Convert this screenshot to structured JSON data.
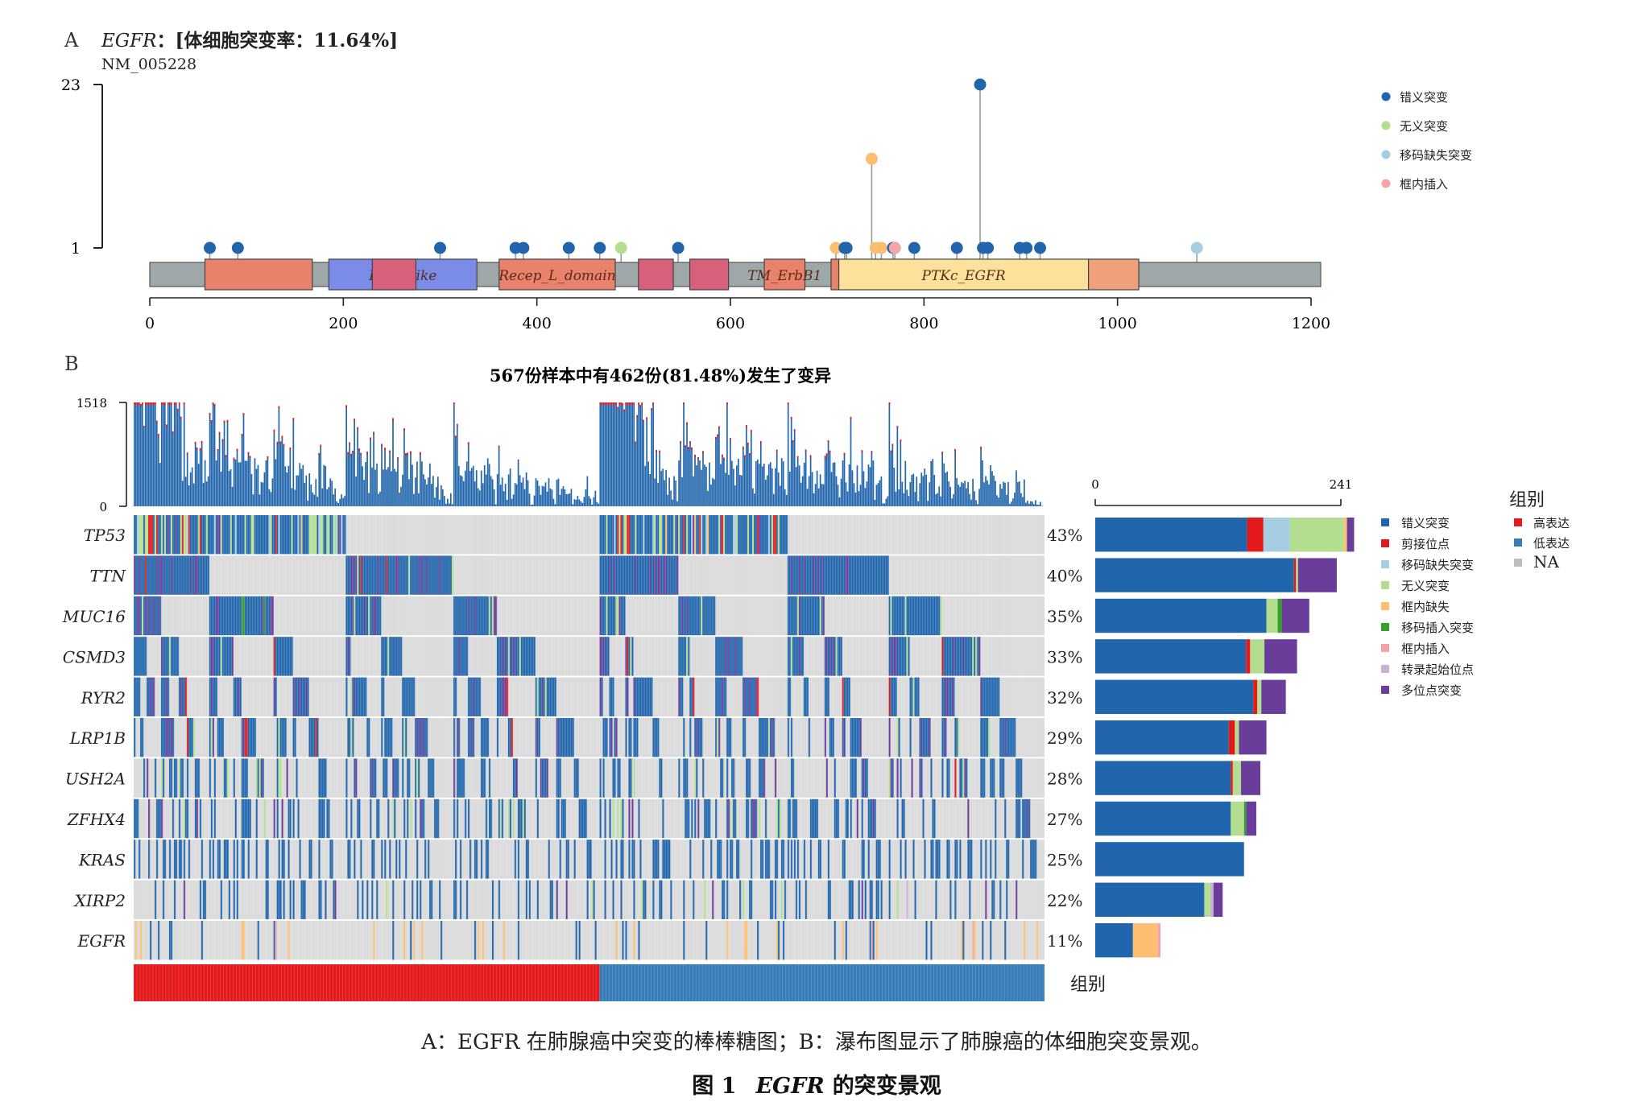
{
  "panel_a_letter": "A",
  "panel_b_letter": "B",
  "caption_text": "A：EGFR 在肺腺癌中突变的棒棒糖图；B：瀑布图显示了肺腺癌的体细胞突变景观。",
  "figure_title": {
    "prefix": "图 1",
    "gene": "EGFR",
    "suffix": "的突变景观"
  },
  "colors": {
    "missense": "#2166ac",
    "nonsense": "#b3de8f",
    "frameshift_del": "#a6cee3",
    "inframe_ins": "#f4a3a8",
    "splice": "#e31a1c",
    "inframe_del": "#fdbf6f",
    "frameshift_ins": "#33a02c",
    "tss": "#cab2d6",
    "multi_hit": "#6a3d9a",
    "background_cell": "#d9d9d9",
    "high_expr": "#e41a1c",
    "low_expr": "#377eb8",
    "na": "#bdbdbd"
  },
  "chart_data": [
    {
      "type": "lollipop",
      "gene": "EGFR",
      "title_extra": "：[体细胞突变率：11.64%]",
      "transcript": "NM_005228",
      "ylim": [
        0,
        23
      ],
      "y_ticks": [
        "1",
        "23"
      ],
      "xlim": [
        0,
        1210
      ],
      "x_ticks": [
        0,
        200,
        400,
        600,
        800,
        1000,
        1200
      ],
      "protein_length": 1210,
      "domains": [
        {
          "name": "",
          "start": 57,
          "end": 168,
          "color": "#e8826a"
        },
        {
          "name": "Furin-like",
          "start": 185,
          "end": 338,
          "color": "#7b8be8"
        },
        {
          "name": "",
          "start": 230,
          "end": 275,
          "color": "#d9607a"
        },
        {
          "name": "Recep_L_domain",
          "start": 361,
          "end": 481,
          "color": "#e8826a"
        },
        {
          "name": "",
          "start": 505,
          "end": 541,
          "color": "#d9607a"
        },
        {
          "name": "",
          "start": 558,
          "end": 598,
          "color": "#d9607a"
        },
        {
          "name": "TM_ErbB1",
          "start": 635,
          "end": 677,
          "color": "#e8826a"
        },
        {
          "name": "",
          "start": 704,
          "end": 712,
          "color": "#e8826a"
        },
        {
          "name": "PTKc_EGFR",
          "start": 712,
          "end": 970,
          "color": "#fbe19a"
        },
        {
          "name": "",
          "start": 970,
          "end": 1022,
          "color": "#f0a07a"
        }
      ],
      "legend": [
        {
          "label": "错义突变",
          "color": "#2166ac"
        },
        {
          "label": "无义突变",
          "color": "#b3de8f"
        },
        {
          "label": "移码缺失突变",
          "color": "#a6cee3"
        },
        {
          "label": "框内插入",
          "color": "#f4a3a8"
        }
      ],
      "mutations": [
        {
          "pos": 62,
          "count": 1,
          "type": "missense"
        },
        {
          "pos": 91,
          "count": 1,
          "type": "missense"
        },
        {
          "pos": 300,
          "count": 1,
          "type": "missense"
        },
        {
          "pos": 378,
          "count": 1,
          "type": "missense"
        },
        {
          "pos": 386,
          "count": 1,
          "type": "missense"
        },
        {
          "pos": 433,
          "count": 1,
          "type": "missense"
        },
        {
          "pos": 465,
          "count": 1,
          "type": "missense"
        },
        {
          "pos": 487,
          "count": 1,
          "type": "nonsense"
        },
        {
          "pos": 546,
          "count": 1,
          "type": "missense"
        },
        {
          "pos": 709,
          "count": 1,
          "type": "inframe_del"
        },
        {
          "pos": 718,
          "count": 1,
          "type": "missense"
        },
        {
          "pos": 720,
          "count": 1,
          "type": "missense"
        },
        {
          "pos": 746,
          "count": 13,
          "type": "inframe_del"
        },
        {
          "pos": 750,
          "count": 1,
          "type": "inframe_del"
        },
        {
          "pos": 756,
          "count": 1,
          "type": "inframe_del"
        },
        {
          "pos": 768,
          "count": 1,
          "type": "missense"
        },
        {
          "pos": 770,
          "count": 1,
          "type": "inframe_ins"
        },
        {
          "pos": 790,
          "count": 1,
          "type": "missense"
        },
        {
          "pos": 834,
          "count": 1,
          "type": "missense"
        },
        {
          "pos": 858,
          "count": 23,
          "type": "missense"
        },
        {
          "pos": 861,
          "count": 1,
          "type": "missense"
        },
        {
          "pos": 866,
          "count": 1,
          "type": "missense"
        },
        {
          "pos": 899,
          "count": 1,
          "type": "missense"
        },
        {
          "pos": 906,
          "count": 1,
          "type": "missense"
        },
        {
          "pos": 920,
          "count": 1,
          "type": "missense"
        },
        {
          "pos": 1082,
          "count": 1,
          "type": "frameshift_del"
        }
      ]
    },
    {
      "type": "oncoplot",
      "title": "567份样本中有462份(81.48%)发生了变异",
      "tmb_ylim": [
        0,
        1518
      ],
      "tmb_ticks": [
        "0",
        "1518"
      ],
      "n_samples": 567,
      "n_altered": 462,
      "bar_xlim": [
        0,
        241
      ],
      "bar_ticks": [
        "0",
        "241"
      ],
      "genes": [
        {
          "name": "TP53",
          "pct": "43%",
          "counts": {
            "missense": 149,
            "splice": 16,
            "frameshift_del": 26,
            "nonsense": 53,
            "inframe_del": 3,
            "multi_hit": 7
          }
        },
        {
          "name": "TTN",
          "pct": "40%",
          "counts": {
            "missense": 195,
            "splice": 2,
            "nonsense": 2,
            "multi_hit": 38
          }
        },
        {
          "name": "MUC16",
          "pct": "35%",
          "counts": {
            "missense": 168,
            "nonsense": 11,
            "frameshift_ins": 4,
            "multi_hit": 27
          }
        },
        {
          "name": "CSMD3",
          "pct": "33%",
          "counts": {
            "missense": 148,
            "splice": 4,
            "nonsense": 14,
            "multi_hit": 32
          }
        },
        {
          "name": "RYR2",
          "pct": "32%",
          "counts": {
            "missense": 155,
            "splice": 4,
            "nonsense": 4,
            "multi_hit": 24
          }
        },
        {
          "name": "LRP1B",
          "pct": "29%",
          "counts": {
            "missense": 131,
            "splice": 6,
            "nonsense": 4,
            "multi_hit": 27
          }
        },
        {
          "name": "USH2A",
          "pct": "28%",
          "counts": {
            "missense": 133,
            "splice": 2,
            "nonsense": 8,
            "multi_hit": 19
          }
        },
        {
          "name": "ZFHX4",
          "pct": "27%",
          "counts": {
            "missense": 133,
            "nonsense": 13,
            "frameshift_ins": 2,
            "multi_hit": 10
          }
        },
        {
          "name": "KRAS",
          "pct": "25%",
          "counts": {
            "missense": 146
          }
        },
        {
          "name": "XIRP2",
          "pct": "22%",
          "counts": {
            "missense": 107,
            "nonsense": 6,
            "tss": 3,
            "multi_hit": 9
          }
        },
        {
          "name": "EGFR",
          "pct": "11%",
          "counts": {
            "missense": 37,
            "inframe_del": 24,
            "inframe_ins": 3
          }
        }
      ],
      "group": {
        "label": "组别",
        "split_fraction": 0.511,
        "first": "high_expr",
        "second": "low_expr"
      },
      "legend_types": [
        {
          "label": "错义突变",
          "key": "missense"
        },
        {
          "label": "剪接位点",
          "key": "splice"
        },
        {
          "label": "移码缺失突变",
          "key": "frameshift_del"
        },
        {
          "label": "无义突变",
          "key": "nonsense"
        },
        {
          "label": "框内缺失",
          "key": "inframe_del"
        },
        {
          "label": "移码插入突变",
          "key": "frameshift_ins"
        },
        {
          "label": "框内插入",
          "key": "inframe_ins"
        },
        {
          "label": "转录起始位点",
          "key": "tss"
        },
        {
          "label": "多位点突变",
          "key": "multi_hit"
        }
      ],
      "legend_group_title": "组别",
      "legend_group": [
        {
          "label": "高表达",
          "key": "high_expr"
        },
        {
          "label": "低表达",
          "key": "low_expr"
        },
        {
          "label": "NA",
          "key": "na"
        }
      ]
    }
  ]
}
